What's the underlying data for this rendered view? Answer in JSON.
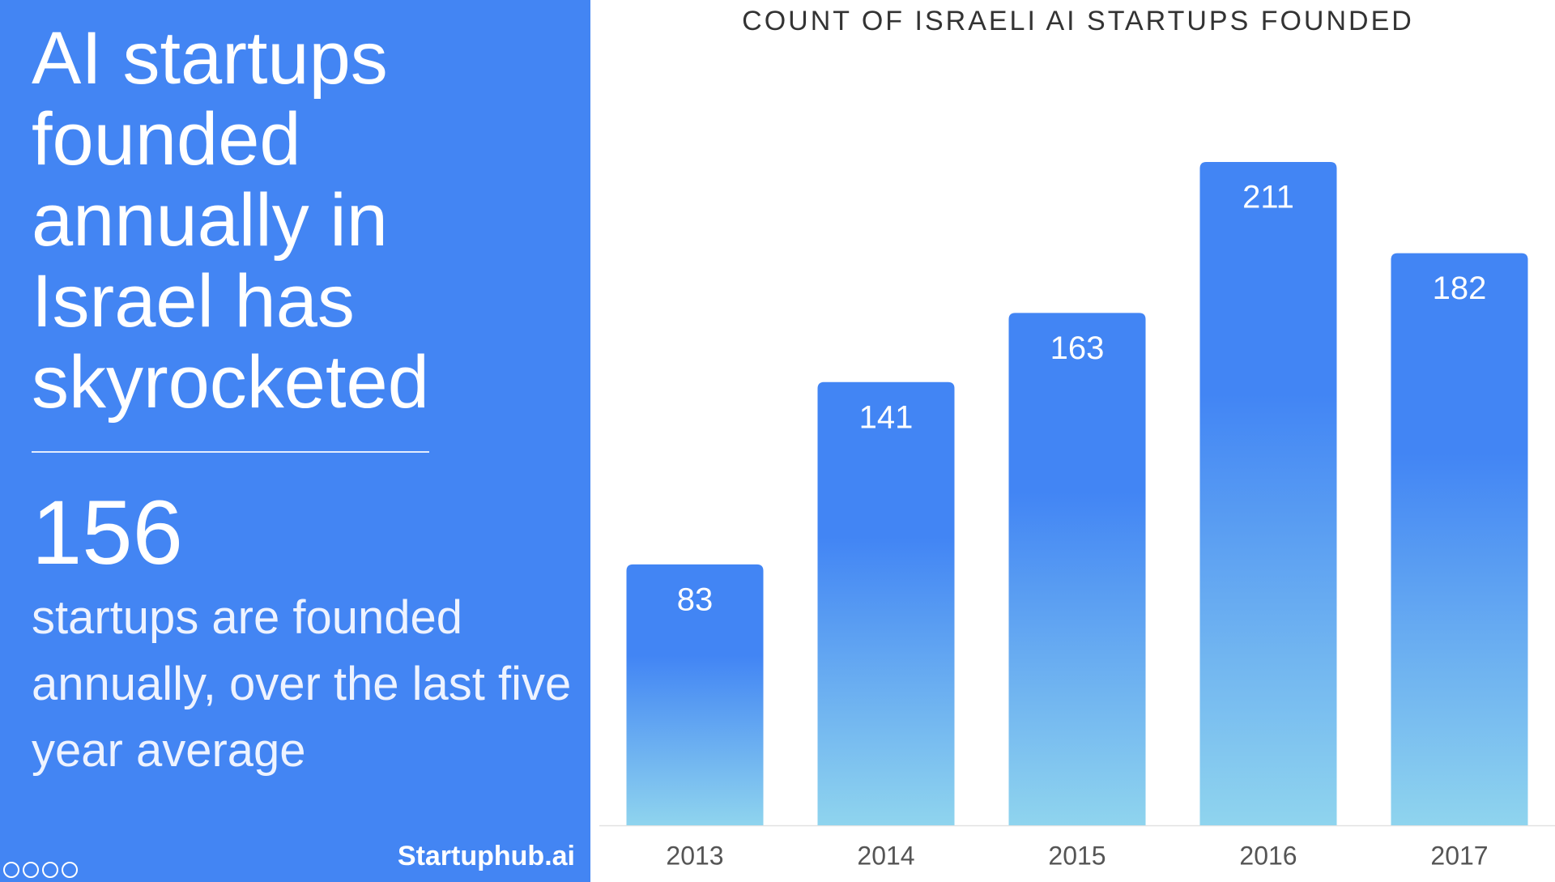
{
  "panel": {
    "headline": "AI startups founded annually in Israel has skyrocketed",
    "stat": "156",
    "stat_text": "startups are founded annually, over the last five year average",
    "brand": "Startuphub.ai"
  },
  "chart_data": {
    "type": "bar",
    "title": "COUNT OF ISRAELI AI STARTUPS FOUNDED",
    "categories": [
      "2013",
      "2014",
      "2015",
      "2016",
      "2017"
    ],
    "values": [
      83,
      141,
      163,
      211,
      182
    ],
    "color_top": "#4285f4",
    "color_bottom": "#8fd4ee"
  }
}
